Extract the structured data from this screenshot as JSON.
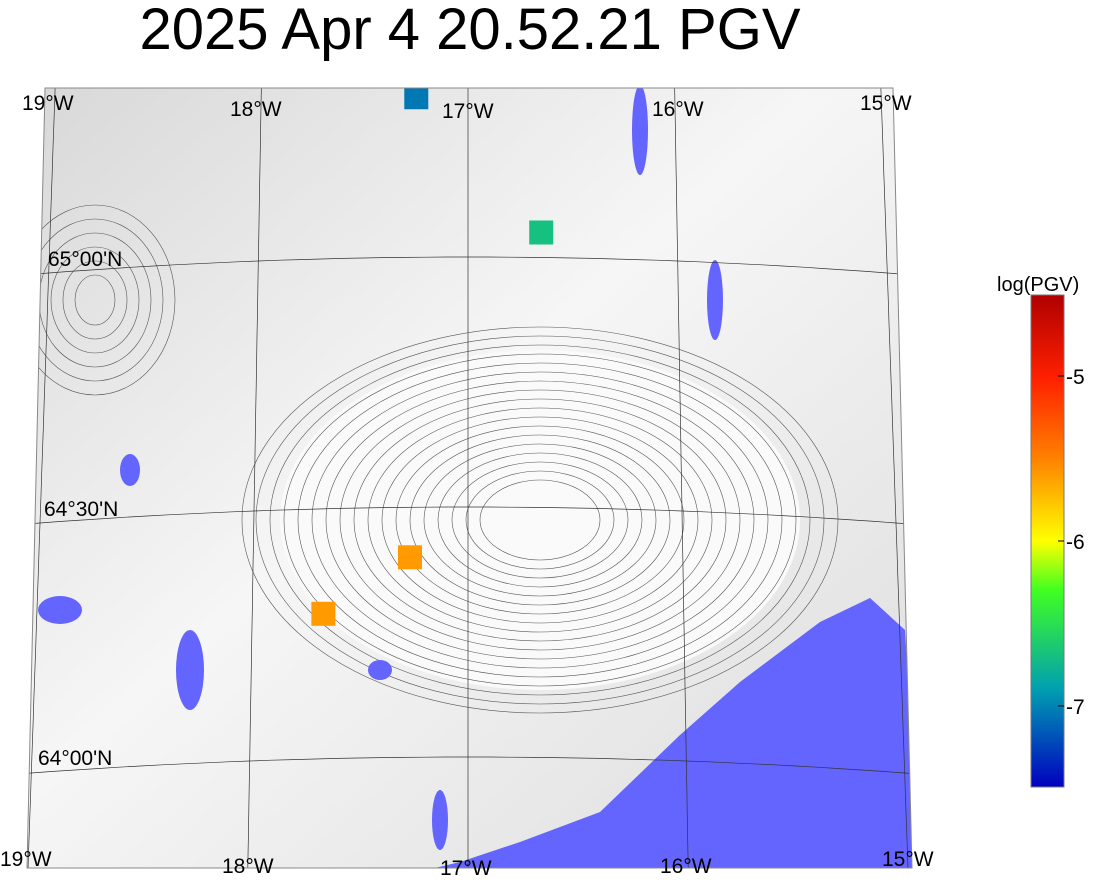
{
  "title": "2025 Apr 4 20.52.21 PGV",
  "map": {
    "lon_labels": [
      "19°W",
      "18°W",
      "17°W",
      "16°W",
      "15°W"
    ],
    "lat_labels": [
      "65°00'N",
      "64°30'N",
      "64°00'N"
    ],
    "water_color": "#6464ff",
    "terrain_color": "#e6e6e6"
  },
  "stations": [
    {
      "lon": -17.25,
      "lat": 65.32,
      "log_pgv": -7.05
    },
    {
      "lon": -16.65,
      "lat": 65.05,
      "log_pgv": -6.7
    },
    {
      "lon": -17.27,
      "lat": 64.4,
      "log_pgv": -5.6
    },
    {
      "lon": -17.67,
      "lat": 64.29,
      "log_pgv": -5.6
    }
  ],
  "colorbar": {
    "label": "log(PGV)",
    "range": [
      -7.5,
      -4.5
    ],
    "ticks": [
      "-5",
      "-6",
      "-7"
    ],
    "colormap": "jet"
  }
}
